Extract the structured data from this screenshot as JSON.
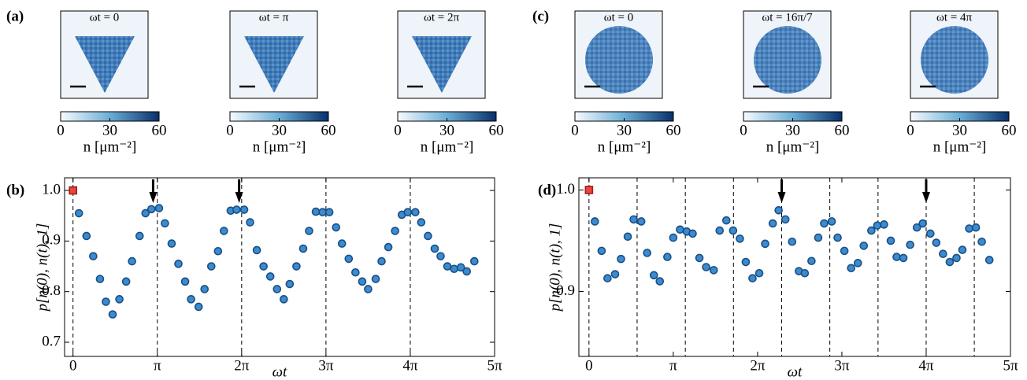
{
  "image_panels": [
    {
      "label": "(a)",
      "shape": "triangle",
      "images": [
        {
          "title": "ωt = 0",
          "colorbar": {
            "clim": [
              0,
              60
            ],
            "ticks": [
              0,
              30,
              60
            ],
            "label": "n [μm⁻²]"
          }
        },
        {
          "title": "ωt = π",
          "colorbar": {
            "clim": [
              0,
              60
            ],
            "ticks": [
              0,
              30,
              60
            ],
            "label": "n [μm⁻²]"
          }
        },
        {
          "title": "ωt = 2π",
          "colorbar": {
            "clim": [
              0,
              60
            ],
            "ticks": [
              0,
              30,
              60
            ],
            "label": "n [μm⁻²]"
          }
        }
      ]
    },
    {
      "label": "(c)",
      "shape": "disk",
      "images": [
        {
          "title": "ωt = 0",
          "colorbar": {
            "clim": [
              0,
              60
            ],
            "ticks": [
              0,
              30,
              60
            ],
            "label": "n [μm⁻²]"
          }
        },
        {
          "title": "ωt = 16π/7",
          "colorbar": {
            "clim": [
              0,
              60
            ],
            "ticks": [
              0,
              30,
              60
            ],
            "label": "n [μm⁻²]"
          }
        },
        {
          "title": "ωt = 4π",
          "colorbar": {
            "clim": [
              0,
              60
            ],
            "ticks": [
              0,
              30,
              60
            ],
            "label": "n [μm⁻²]"
          }
        }
      ]
    }
  ],
  "chart_data": [
    {
      "type": "scatter",
      "panel_label": "(b)",
      "xlabel": "ωt",
      "ylabel": "p[n(0), n(t), 1]",
      "xlim": [
        -0.1,
        5
      ],
      "ylim": [
        0.672,
        1.025
      ],
      "xticks": [
        0,
        {
          "value": 1,
          "label": "π"
        },
        {
          "value": 2,
          "label": "2π"
        },
        {
          "value": 3,
          "label": "3π"
        },
        {
          "value": 4,
          "label": "4π"
        },
        {
          "value": 5,
          "label": "5π"
        }
      ],
      "yticks": [
        0.7,
        0.8,
        0.9,
        {
          "value": 1,
          "label": "1.0"
        }
      ],
      "vlines": [
        0,
        1,
        2,
        3,
        4
      ],
      "arrows": [
        0.95,
        1.97
      ],
      "series": [
        {
          "color": "#e8473f",
          "marker": "square",
          "x": [
            0
          ],
          "values": [
            1.0
          ]
        },
        {
          "color": "#3b8bd0",
          "marker": "circle",
          "x": [
            0.07,
            0.16,
            0.24,
            0.32,
            0.39,
            0.47,
            0.55,
            0.63,
            0.7,
            0.79,
            0.86,
            0.93,
            1.02,
            1.09,
            1.17,
            1.25,
            1.33,
            1.4,
            1.49,
            1.56,
            1.64,
            1.72,
            1.79,
            1.87,
            1.94,
            2.03,
            2.1,
            2.18,
            2.26,
            2.34,
            2.42,
            2.5,
            2.57,
            2.65,
            2.73,
            2.8,
            2.88,
            2.96,
            3.04,
            3.12,
            3.19,
            3.27,
            3.35,
            3.43,
            3.5,
            3.59,
            3.66,
            3.74,
            3.82,
            3.9,
            3.97,
            4.06,
            4.13,
            4.21,
            4.29,
            4.36,
            4.44,
            4.52,
            4.6,
            4.67,
            4.76
          ],
          "values": [
            0.955,
            0.91,
            0.87,
            0.825,
            0.78,
            0.755,
            0.785,
            0.82,
            0.86,
            0.91,
            0.955,
            0.963,
            0.965,
            0.935,
            0.895,
            0.855,
            0.82,
            0.785,
            0.77,
            0.805,
            0.85,
            0.88,
            0.92,
            0.96,
            0.962,
            0.962,
            0.937,
            0.882,
            0.85,
            0.83,
            0.805,
            0.785,
            0.815,
            0.85,
            0.885,
            0.92,
            0.958,
            0.957,
            0.957,
            0.927,
            0.895,
            0.865,
            0.838,
            0.82,
            0.805,
            0.825,
            0.86,
            0.888,
            0.92,
            0.952,
            0.957,
            0.957,
            0.937,
            0.91,
            0.885,
            0.87,
            0.85,
            0.845,
            0.848,
            0.84,
            0.86
          ]
        }
      ]
    },
    {
      "type": "scatter",
      "panel_label": "(d)",
      "xlabel": "ωt",
      "ylabel": "p[n(0), n(t), 1]",
      "xlim": [
        -0.12,
        5
      ],
      "ylim": [
        0.836,
        1.012
      ],
      "xticks": [
        0,
        {
          "value": 1,
          "label": "π"
        },
        {
          "value": 2,
          "label": "2π"
        },
        {
          "value": 3,
          "label": "3π"
        },
        {
          "value": 4,
          "label": "4π"
        },
        {
          "value": 5,
          "label": "5π"
        }
      ],
      "yticks": [
        0.9,
        {
          "value": 1,
          "label": "1.0"
        }
      ],
      "vlines": [
        0,
        0.571,
        1.143,
        1.714,
        2.286,
        2.857,
        3.429,
        4.0,
        4.571
      ],
      "arrows": [
        2.286,
        4.0
      ],
      "series": [
        {
          "color": "#e8473f",
          "marker": "square",
          "x": [
            0
          ],
          "values": [
            1.0
          ]
        },
        {
          "color": "#3b8bd0",
          "marker": "circle",
          "x": [
            0.07,
            0.15,
            0.22,
            0.31,
            0.38,
            0.46,
            0.53,
            0.62,
            0.69,
            0.77,
            0.84,
            0.93,
            1.0,
            1.08,
            1.16,
            1.23,
            1.31,
            1.39,
            1.48,
            1.55,
            1.63,
            1.71,
            1.79,
            1.86,
            1.94,
            2.02,
            2.09,
            2.18,
            2.25,
            2.33,
            2.41,
            2.49,
            2.56,
            2.64,
            2.72,
            2.79,
            2.88,
            2.95,
            3.03,
            3.11,
            3.19,
            3.26,
            3.35,
            3.42,
            3.5,
            3.58,
            3.65,
            3.73,
            3.81,
            3.89,
            3.96,
            4.05,
            4.12,
            4.2,
            4.28,
            4.36,
            4.43,
            4.51,
            4.59,
            4.66,
            4.75
          ],
          "values": [
            0.969,
            0.94,
            0.913,
            0.917,
            0.932,
            0.954,
            0.971,
            0.969,
            0.938,
            0.916,
            0.91,
            0.934,
            0.953,
            0.961,
            0.959,
            0.957,
            0.933,
            0.924,
            0.921,
            0.96,
            0.97,
            0.96,
            0.952,
            0.929,
            0.913,
            0.918,
            0.947,
            0.967,
            0.98,
            0.971,
            0.949,
            0.92,
            0.918,
            0.93,
            0.953,
            0.967,
            0.969,
            0.953,
            0.94,
            0.923,
            0.928,
            0.945,
            0.96,
            0.965,
            0.966,
            0.95,
            0.934,
            0.933,
            0.946,
            0.963,
            0.967,
            0.957,
            0.948,
            0.937,
            0.929,
            0.933,
            0.941,
            0.962,
            0.963,
            0.949,
            0.931
          ]
        }
      ]
    }
  ]
}
